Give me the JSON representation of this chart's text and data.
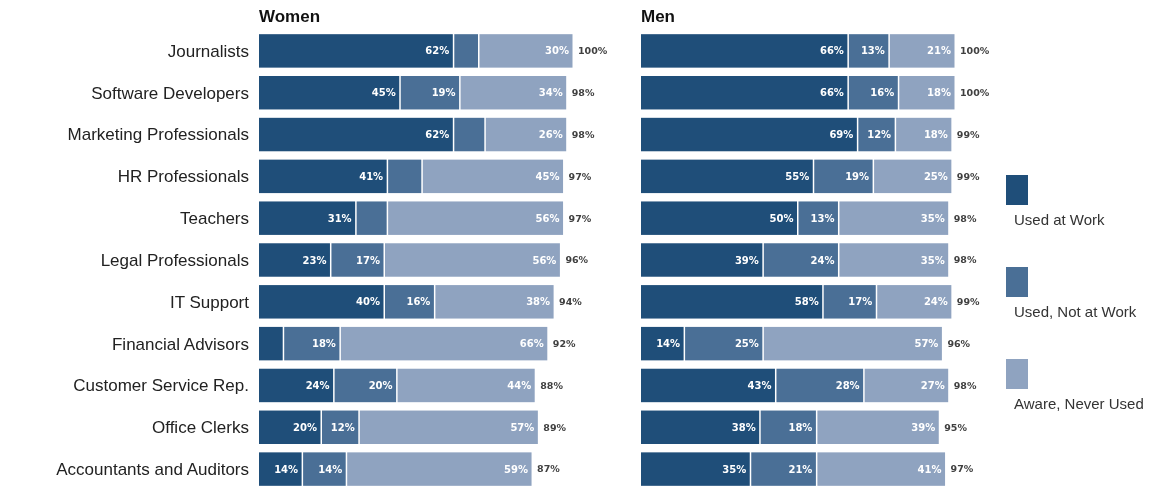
{
  "chart_data": [
    {
      "type": "bar",
      "title": "Women",
      "orientation": "horizontal",
      "stacked": true,
      "tick_labels": "y",
      "legend": false,
      "categories": [
        "Journalists",
        "Software Developers",
        "Marketing Professionals",
        "HR Professionals",
        "Teachers",
        "Legal Professionals",
        "IT Support",
        "Financial Advisors",
        "Customer Service Rep.",
        "Office Clerks",
        "Accountants and Auditors"
      ],
      "series": [
        {
          "color": "#1f4e79",
          "values": [
            62,
            45,
            62,
            41,
            31,
            23,
            40,
            8,
            24,
            20,
            14
          ],
          "value_labels": [
            "62%",
            "45%",
            "62%",
            "41%",
            "31%",
            "23%",
            "40%",
            null,
            "24%",
            "20%",
            "14%"
          ]
        },
        {
          "color": "#4a6f96",
          "values": [
            8,
            19,
            10,
            11,
            10,
            17,
            16,
            18,
            20,
            12,
            14
          ],
          "value_labels": [
            null,
            "19%",
            null,
            null,
            null,
            "17%",
            "16%",
            "18%",
            "20%",
            "12%",
            "14%"
          ]
        },
        {
          "color": "#8fa3c0",
          "values": [
            30,
            34,
            26,
            45,
            56,
            56,
            38,
            66,
            44,
            57,
            59
          ],
          "value_labels": [
            "30%",
            "34%",
            "26%",
            "45%",
            "56%",
            "56%",
            "38%",
            "66%",
            "44%",
            "57%",
            "59%"
          ]
        }
      ],
      "totals": [
        "100%",
        "98%",
        "98%",
        "97%",
        "97%",
        "96%",
        "94%",
        "92%",
        "88%",
        "89%",
        "87%"
      ]
    },
    {
      "type": "bar",
      "title": "Men",
      "orientation": "horizontal",
      "stacked": true,
      "tick_labels": false,
      "legend": "right",
      "categories": [
        null,
        null,
        null,
        null,
        null,
        null,
        null,
        null,
        null,
        null,
        null
      ],
      "series": [
        {
          "name": "Used at Work",
          "color": "#1f4e79",
          "values": [
            66,
            66,
            69,
            55,
            50,
            39,
            58,
            14,
            43,
            38,
            35
          ],
          "value_labels": [
            "66%",
            "66%",
            "69%",
            "55%",
            "50%",
            "39%",
            "58%",
            "14%",
            "43%",
            "38%",
            "35%"
          ]
        },
        {
          "name": "Used, Not at Work",
          "color": "#4a6f96",
          "values": [
            13,
            16,
            12,
            19,
            13,
            24,
            17,
            25,
            28,
            18,
            21
          ],
          "value_labels": [
            "13%",
            "16%",
            "12%",
            "19%",
            "13%",
            "24%",
            "17%",
            "25%",
            "28%",
            "18%",
            "21%"
          ]
        },
        {
          "name": "Aware, Never Used",
          "color": "#8fa3c0",
          "values": [
            21,
            18,
            18,
            25,
            35,
            35,
            24,
            57,
            27,
            39,
            41
          ],
          "value_labels": [
            "21%",
            "18%",
            "18%",
            "25%",
            "35%",
            "35%",
            "24%",
            "57%",
            "27%",
            "39%",
            "41%"
          ]
        }
      ],
      "totals": [
        "100%",
        "100%",
        "99%",
        "99%",
        "98%",
        "98%",
        "99%",
        "96%",
        "98%",
        "95%",
        "97%"
      ]
    }
  ]
}
